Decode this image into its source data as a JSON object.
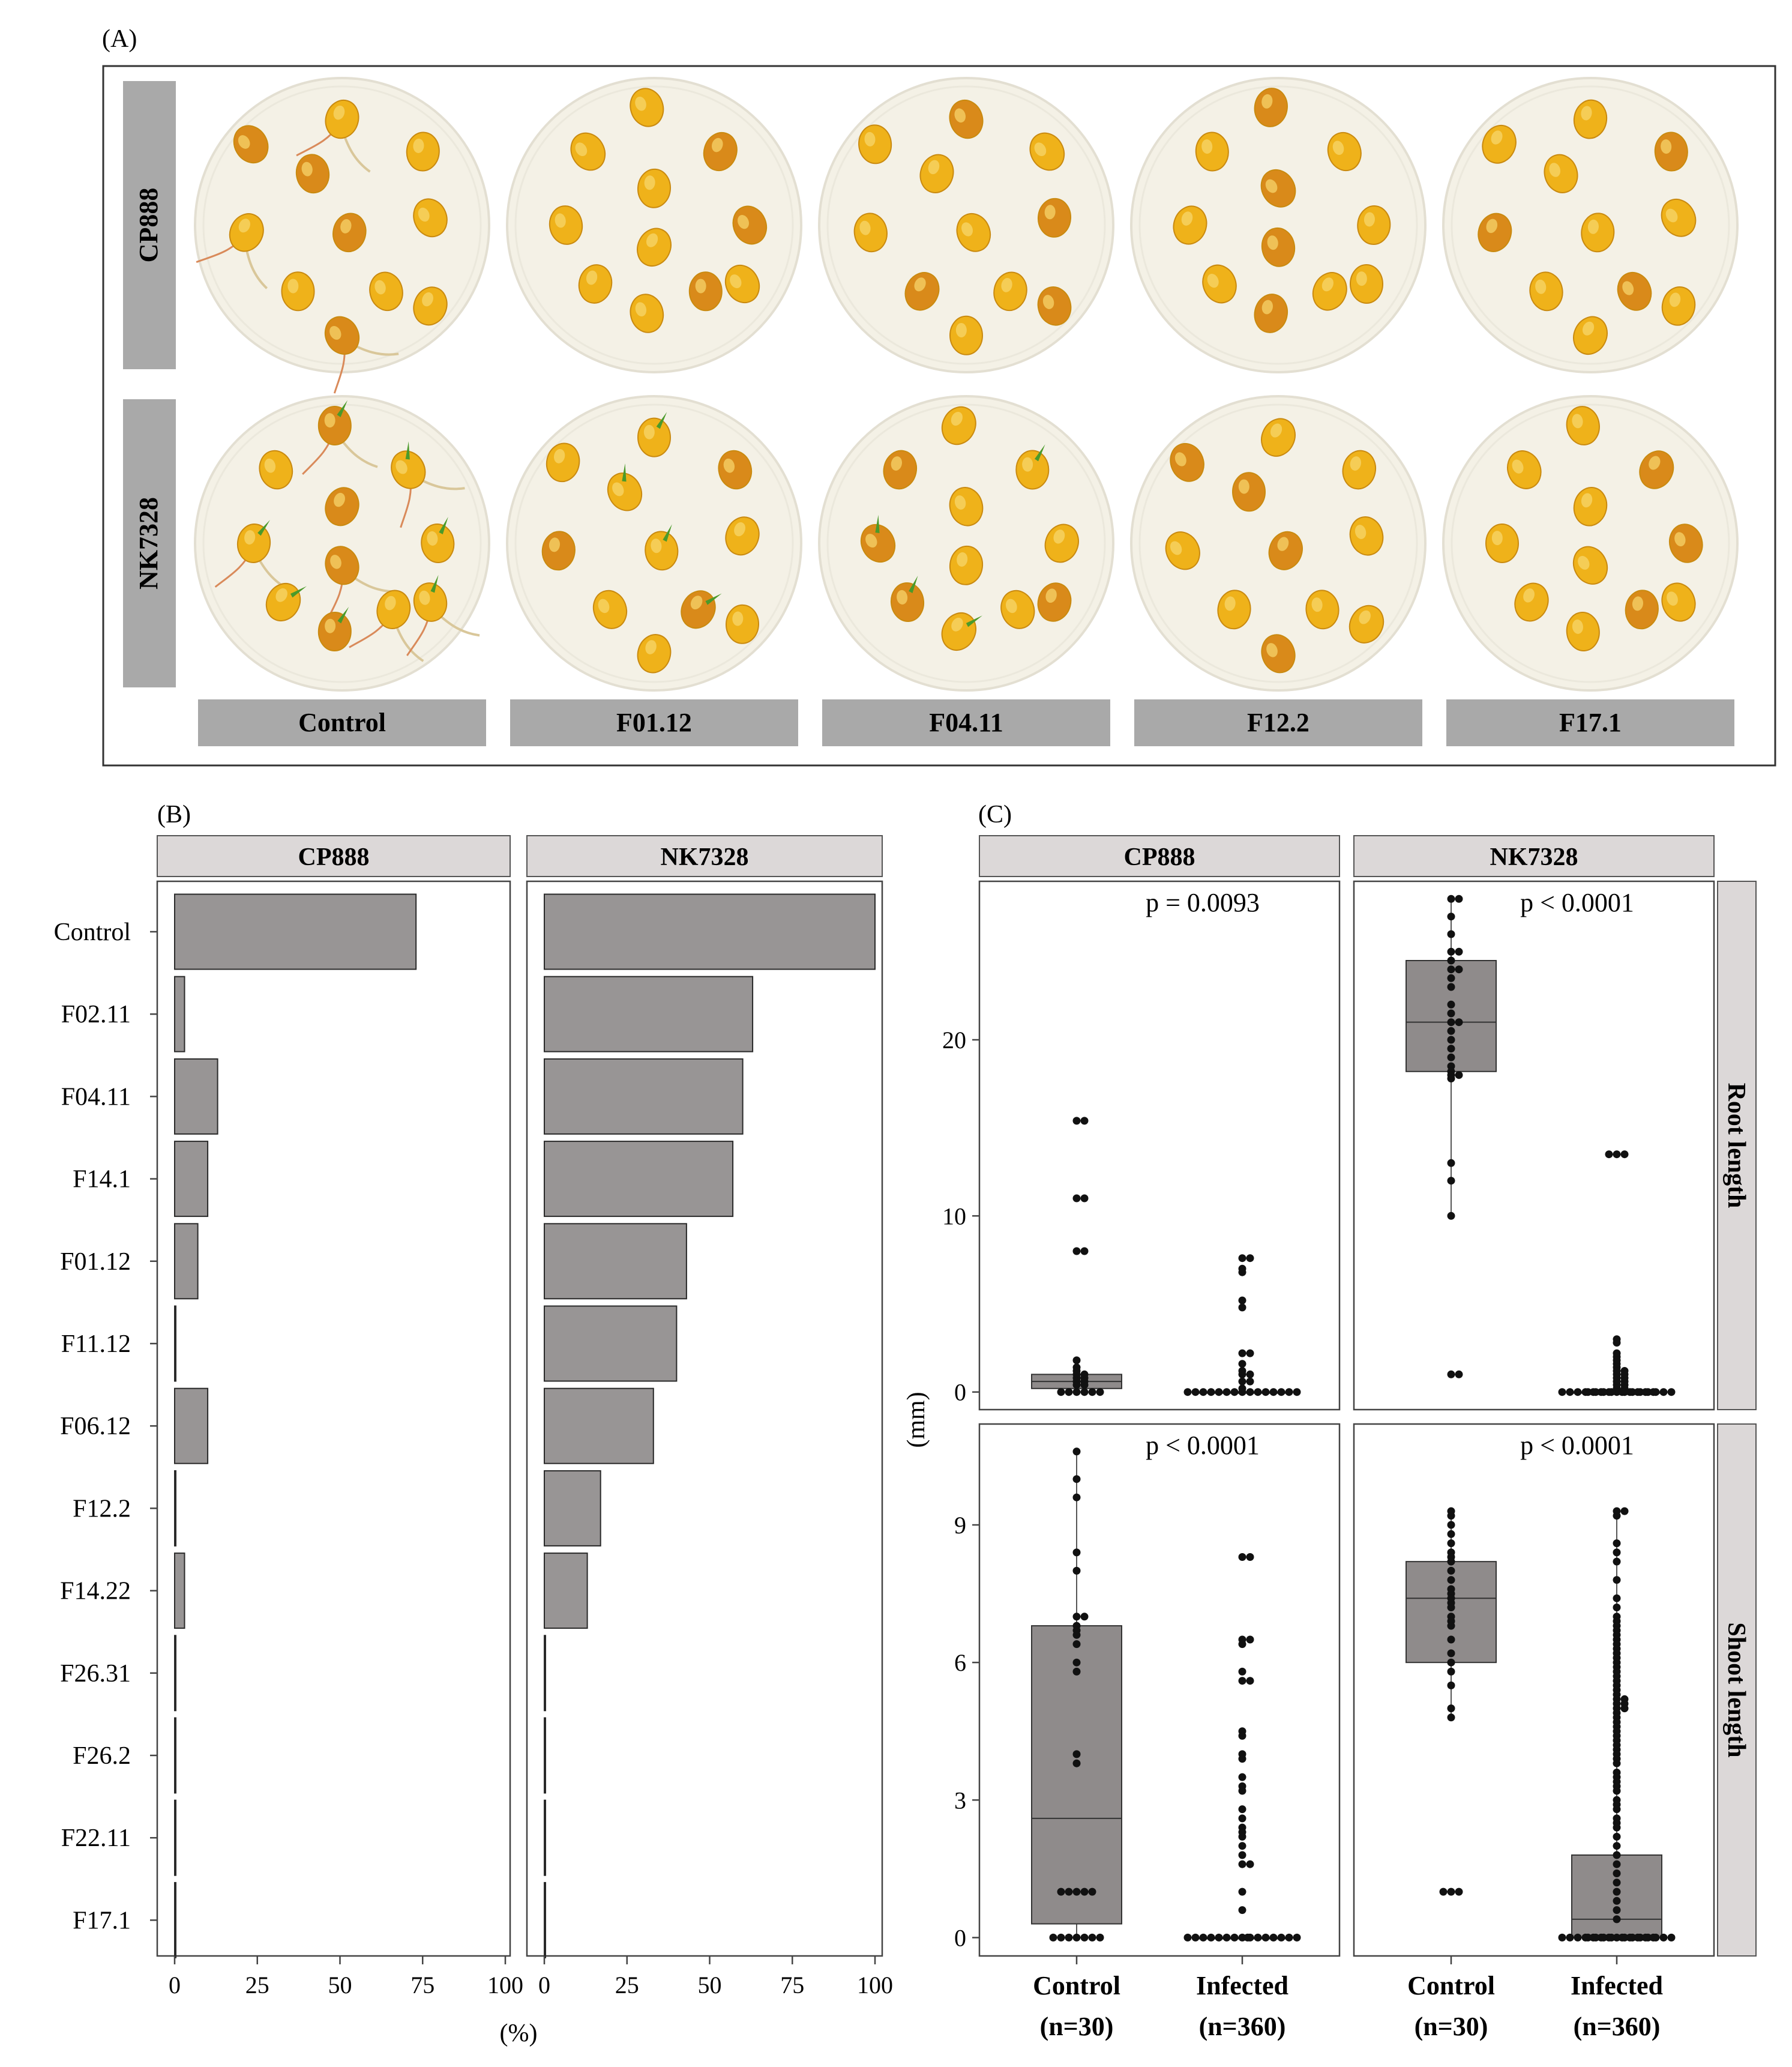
{
  "panel_a": {
    "label": "(A)",
    "row_labels": [
      "CP888",
      "NK7328"
    ],
    "column_labels": [
      "Control",
      "F01.12",
      "F04.11",
      "F12.2",
      "F17.1"
    ],
    "colors": {
      "seed": "#efb21a",
      "seed_dark": "#d98a1a",
      "paper": "#f4f1e6",
      "sprout": "#4a9a2a",
      "strip": "#a9a9a9"
    }
  },
  "panel_b": {
    "label": "(B)",
    "chart_data": {
      "type": "bar",
      "orientation": "horizontal",
      "facets": [
        "CP888",
        "NK7328"
      ],
      "categories": [
        "Control",
        "F02.11",
        "F04.11",
        "F14.1",
        "F01.12",
        "F11.12",
        "F06.12",
        "F12.2",
        "F14.22",
        "F26.31",
        "F26.2",
        "F22.11",
        "F17.1"
      ],
      "series": [
        {
          "name": "CP888",
          "values": [
            73,
            3,
            13,
            10,
            7,
            0,
            10,
            0,
            3,
            0,
            0,
            0,
            0
          ]
        },
        {
          "name": "NK7328",
          "values": [
            100,
            63,
            60,
            57,
            43,
            40,
            33,
            17,
            13,
            0,
            0,
            0,
            0
          ]
        }
      ],
      "xlim": [
        0,
        105
      ],
      "xticks": [
        "0",
        "25",
        "50",
        "75",
        "100"
      ],
      "xlabel": "(%)",
      "bar_color": "#989595"
    }
  },
  "panel_c": {
    "label": "(C)",
    "chart_data": {
      "type": "boxplot",
      "facet_columns": [
        "CP888",
        "NK7328"
      ],
      "facet_rows": [
        "Root length",
        "Shoot length"
      ],
      "ylabel": "(mm)",
      "groups": [
        {
          "name": "Control",
          "n_label": "(n=30)"
        },
        {
          "name": "Infected",
          "n_label": "(n=360)"
        }
      ],
      "rows": [
        {
          "name": "Root length",
          "ylim": [
            -1,
            29
          ],
          "yticks": [
            0,
            10,
            20
          ],
          "panels": [
            {
              "genotype": "CP888",
              "p_label": "p = 0.0093",
              "boxes": [
                {
                  "group": "Control",
                  "min": 0,
                  "q1": 0.2,
                  "median": 0.6,
                  "q3": 1.0,
                  "max": 1.0,
                  "points": [
                    15.4,
                    15.4,
                    11.0,
                    11.0,
                    8.0,
                    8.0,
                    1.8,
                    1.4,
                    1.2,
                    1.0,
                    1.0,
                    0.8,
                    0.8,
                    0.6,
                    0.6,
                    0.4,
                    0.4,
                    0,
                    0,
                    0,
                    0,
                    0,
                    0
                  ]
                },
                {
                  "group": "Infected",
                  "min": 0,
                  "q1": 0,
                  "median": 0,
                  "q3": 0,
                  "max": 0,
                  "points": [
                    7.6,
                    7.6,
                    7.0,
                    6.8,
                    5.2,
                    4.8,
                    2.2,
                    2.2,
                    1.6,
                    1.2,
                    1.0,
                    1.0,
                    0.6,
                    0.6,
                    0.2,
                    0,
                    0,
                    0,
                    0,
                    0,
                    0,
                    0,
                    0,
                    0,
                    0,
                    0,
                    0,
                    0,
                    0,
                    0
                  ]
                }
              ]
            },
            {
              "genotype": "NK7328",
              "p_label": "p < 0.0001",
              "boxes": [
                {
                  "group": "Control",
                  "min": 10,
                  "q1": 18.2,
                  "median": 21.0,
                  "q3": 24.5,
                  "max": 28,
                  "points": [
                    28,
                    28,
                    27,
                    26,
                    25,
                    25,
                    24.5,
                    24,
                    24,
                    23.5,
                    23,
                    22,
                    21.5,
                    21,
                    21,
                    20.5,
                    20,
                    19.5,
                    19,
                    18.5,
                    18.2,
                    18,
                    18,
                    17.8,
                    13,
                    12,
                    10,
                    1,
                    1
                  ]
                },
                {
                  "group": "Infected",
                  "min": 0,
                  "q1": 0,
                  "median": 0,
                  "q3": 0,
                  "max": 0,
                  "points": [
                    13.5,
                    13.5,
                    13.5,
                    3.0,
                    2.8,
                    2.2,
                    2.0,
                    1.8,
                    1.6,
                    1.4,
                    1.2,
                    1.2,
                    1.0,
                    1.0,
                    0.8,
                    0.8,
                    0.6,
                    0.6,
                    0.4,
                    0.4,
                    0.2,
                    0.2,
                    0,
                    0,
                    0,
                    0,
                    0,
                    0,
                    0,
                    0,
                    0,
                    0,
                    0,
                    0,
                    0,
                    0,
                    0,
                    0,
                    0,
                    0,
                    0,
                    0,
                    0,
                    0,
                    0,
                    0
                  ]
                }
              ]
            }
          ]
        },
        {
          "name": "Shoot length",
          "ylim": [
            -0.4,
            11.2
          ],
          "yticks": [
            0,
            3,
            6,
            9
          ],
          "panels": [
            {
              "genotype": "CP888",
              "p_label": "p < 0.0001",
              "boxes": [
                {
                  "group": "Control",
                  "min": 0,
                  "q1": 0.3,
                  "median": 2.6,
                  "q3": 6.8,
                  "max": 10.6,
                  "points": [
                    10.6,
                    10.0,
                    9.6,
                    8.4,
                    8.0,
                    7.0,
                    7.0,
                    6.8,
                    6.7,
                    6.6,
                    6.4,
                    6.0,
                    5.8,
                    4.0,
                    3.8,
                    1.0,
                    1.0,
                    1.0,
                    1.0,
                    1.0,
                    0,
                    0,
                    0,
                    0,
                    0,
                    0,
                    0
                  ]
                },
                {
                  "group": "Infected",
                  "min": 0,
                  "q1": 0,
                  "median": 0,
                  "q3": 0,
                  "max": 0,
                  "points": [
                    8.3,
                    8.3,
                    6.5,
                    6.5,
                    6.4,
                    5.8,
                    5.6,
                    5.6,
                    4.5,
                    4.4,
                    4.0,
                    3.9,
                    3.5,
                    3.3,
                    3.2,
                    2.8,
                    2.6,
                    2.4,
                    2.3,
                    2.2,
                    2.0,
                    1.8,
                    1.6,
                    1.6,
                    1.0,
                    0.6,
                    0,
                    0,
                    0,
                    0,
                    0,
                    0,
                    0,
                    0,
                    0,
                    0,
                    0,
                    0,
                    0,
                    0,
                    0,
                    0
                  ]
                }
              ]
            },
            {
              "genotype": "NK7328",
              "p_label": "p < 0.0001",
              "boxes": [
                {
                  "group": "Control",
                  "min": 4.8,
                  "q1": 6.0,
                  "median": 7.4,
                  "q3": 8.2,
                  "max": 9.3,
                  "points": [
                    9.3,
                    9.2,
                    9.0,
                    8.8,
                    8.6,
                    8.4,
                    8.3,
                    8.2,
                    8.0,
                    7.8,
                    7.6,
                    7.5,
                    7.4,
                    7.3,
                    7.2,
                    7.0,
                    6.9,
                    6.8,
                    6.5,
                    6.2,
                    6.0,
                    5.8,
                    5.5,
                    5.0,
                    4.8,
                    1.0,
                    1.0,
                    1.0
                  ]
                },
                {
                  "group": "Infected",
                  "min": 0,
                  "q1": 0,
                  "median": 0.4,
                  "q3": 1.8,
                  "max": 9.3,
                  "points": [
                    9.3,
                    9.3,
                    9.2,
                    8.6,
                    8.4,
                    8.2,
                    7.8,
                    7.4,
                    7.2,
                    7.0,
                    6.9,
                    6.8,
                    6.7,
                    6.6,
                    6.5,
                    6.4,
                    6.3,
                    6.2,
                    6.1,
                    6.0,
                    5.9,
                    5.8,
                    5.7,
                    5.6,
                    5.5,
                    5.4,
                    5.3,
                    5.2,
                    5.2,
                    5.1,
                    5.1,
                    5.0,
                    5.0,
                    4.9,
                    4.8,
                    4.7,
                    4.6,
                    4.5,
                    4.4,
                    4.3,
                    4.2,
                    4.1,
                    4.0,
                    3.9,
                    3.8,
                    3.6,
                    3.5,
                    3.4,
                    3.3,
                    3.2,
                    3.0,
                    2.9,
                    2.8,
                    2.6,
                    2.5,
                    2.4,
                    2.2,
                    2.0,
                    1.8,
                    1.6,
                    1.4,
                    1.2,
                    1.0,
                    0.8,
                    0.6,
                    0.4,
                    0,
                    0,
                    0,
                    0,
                    0,
                    0,
                    0,
                    0,
                    0,
                    0,
                    0,
                    0,
                    0,
                    0,
                    0,
                    0,
                    0,
                    0,
                    0,
                    0,
                    0,
                    0,
                    0,
                    0
                  ]
                }
              ]
            }
          ]
        }
      ]
    }
  }
}
